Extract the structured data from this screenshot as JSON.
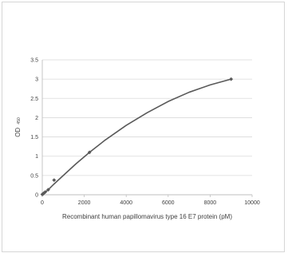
{
  "chart_data": {
    "type": "scatter",
    "title": "",
    "xlabel": "Recombinant human papillomavirus type 16 E7 protein (pM)",
    "ylabel": "OD",
    "ylabel_sub": "450",
    "xlim": [
      0,
      10000
    ],
    "ylim": [
      0,
      3.5
    ],
    "x_ticks": [
      "0",
      "2000",
      "4000",
      "6000",
      "8000",
      "10000"
    ],
    "y_ticks": [
      "0",
      "0.5",
      "1",
      "1.5",
      "2",
      "2.5",
      "3",
      "3.5"
    ],
    "grid": "horizontal",
    "series": [
      {
        "marker": "diamond",
        "color": "#595959",
        "x": [
          0,
          35,
          70,
          141,
          282,
          563,
          2250,
          9000
        ],
        "y": [
          0.01,
          0.02,
          0.04,
          0.07,
          0.13,
          0.38,
          1.1,
          3.0
        ]
      }
    ],
    "trendline": {
      "color": "#595959",
      "x": [
        0,
        35,
        70,
        141,
        282,
        563,
        1000,
        1600,
        2250,
        3000,
        4000,
        5000,
        6000,
        7000,
        8000,
        9000
      ],
      "y": [
        0.01,
        0.02,
        0.04,
        0.07,
        0.13,
        0.28,
        0.5,
        0.8,
        1.1,
        1.42,
        1.8,
        2.13,
        2.42,
        2.66,
        2.85,
        3.0
      ]
    }
  }
}
